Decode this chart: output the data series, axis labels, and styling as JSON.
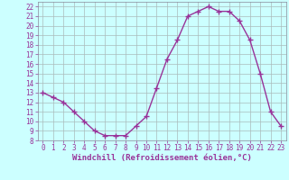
{
  "x": [
    0,
    1,
    2,
    3,
    4,
    5,
    6,
    7,
    8,
    9,
    10,
    11,
    12,
    13,
    14,
    15,
    16,
    17,
    18,
    19,
    20,
    21,
    22,
    23
  ],
  "y": [
    13,
    12.5,
    12,
    11,
    10,
    9,
    8.5,
    8.5,
    8.5,
    9.5,
    10.5,
    13.5,
    16.5,
    18.5,
    21,
    21.5,
    22,
    21.5,
    21.5,
    20.5,
    18.5,
    15,
    11,
    9.5
  ],
  "line_color": "#993399",
  "marker": "+",
  "bg_color": "#ccffff",
  "grid_color": "#aabbbb",
  "xlabel": "Windchill (Refroidissement éolien,°C)",
  "ylim": [
    8,
    22.5
  ],
  "xlim": [
    -0.5,
    23.5
  ],
  "yticks": [
    8,
    9,
    10,
    11,
    12,
    13,
    14,
    15,
    16,
    17,
    18,
    19,
    20,
    21,
    22
  ],
  "xticks": [
    0,
    1,
    2,
    3,
    4,
    5,
    6,
    7,
    8,
    9,
    10,
    11,
    12,
    13,
    14,
    15,
    16,
    17,
    18,
    19,
    20,
    21,
    22,
    23
  ],
  "tick_fontsize": 5.5,
  "xlabel_fontsize": 6.5,
  "line_width": 1.0,
  "marker_size": 4
}
